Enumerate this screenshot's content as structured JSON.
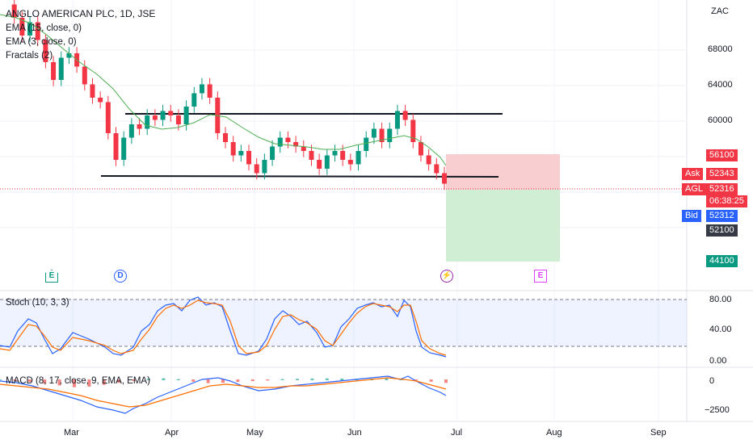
{
  "header": {
    "symbol_title": "ANGLO AMERICAN PLC, 1D, JSE",
    "indicators": [
      "EMA (15, close, 0)",
      "EMA (3, close, 0)",
      "Fractals (2)"
    ]
  },
  "price_axis": {
    "currency": "ZAC",
    "ticks": [
      68000,
      64000,
      60000
    ],
    "tick_labels": [
      "68000",
      "64000",
      "60000"
    ]
  },
  "price_tags": {
    "stop": {
      "value": "56100",
      "color": "#f23645"
    },
    "ask": {
      "label": "Ask",
      "value": "52343",
      "color": "#f23645"
    },
    "last": {
      "label": "AGL",
      "value": "52316",
      "countdown": "06:38:25",
      "color": "#f23645"
    },
    "bid": {
      "label": "Bid",
      "value": "52312",
      "color": "#2962ff"
    },
    "entry": {
      "value": "52100",
      "color": "#363a45"
    },
    "target": {
      "value": "44100",
      "color": "#089981"
    }
  },
  "events": [
    {
      "type": "E",
      "icon": "earnings-icon",
      "color": "#089981",
      "month_offset": "Mar-early"
    },
    {
      "type": "D",
      "icon": "dividend-icon",
      "color": "#2962ff"
    },
    {
      "type": "⚡",
      "icon": "split-icon",
      "color": "#9c27b0"
    },
    {
      "type": "E",
      "icon": "earnings-icon",
      "color": "#e040fb"
    }
  ],
  "stoch": {
    "label": "Stoch (10, 3, 3)",
    "tick_labels": [
      "80.00",
      "40.00",
      "0.00"
    ],
    "levels": [
      80,
      20
    ]
  },
  "macd": {
    "label": "MACD (8, 17, close, 9, EMA, EMA)",
    "tick_labels": [
      "0",
      "−2500"
    ]
  },
  "time_axis": {
    "labels": [
      "Mar",
      "Apr",
      "May",
      "Jun",
      "Jul",
      "Aug",
      "Sep"
    ]
  },
  "chart_data": {
    "type": "candlestick",
    "title": "ANGLO AMERICAN PLC, 1D, JSE",
    "y_unit": "ZAC",
    "ylim": [
      43000,
      73000
    ],
    "support_level": 53100,
    "resistance_level": 60800,
    "last_price": 52316,
    "position": {
      "entry": 52100,
      "stop": 56100,
      "target": 44100
    },
    "close_series_approx": [
      72500,
      71000,
      69000,
      70500,
      68500,
      66000,
      64000,
      66500,
      67000,
      65500,
      63500,
      62000,
      61500,
      58000,
      55000,
      57500,
      59000,
      58500,
      60000,
      59500,
      60500,
      60000,
      59000,
      61000,
      62500,
      63500,
      62000,
      58000,
      57000,
      55500,
      56000,
      54500,
      53500,
      55000,
      56500,
      57500,
      57000,
      56500,
      56000,
      55000,
      54000,
      55500,
      56000,
      55000,
      54500,
      56000,
      57500,
      58500,
      57000,
      58500,
      60500,
      59500,
      57000,
      55500,
      54500,
      53500,
      52316
    ],
    "stoch_k_approx": [
      30,
      25,
      55,
      75,
      70,
      45,
      20,
      30,
      55,
      80,
      78,
      62,
      35,
      15,
      20,
      70,
      82,
      72,
      60,
      75,
      80,
      70,
      55,
      35,
      10,
      15,
      25,
      60,
      80,
      70,
      55,
      25,
      20,
      40,
      65,
      78,
      80,
      70,
      40,
      10,
      5
    ],
    "macd_approx": [
      0,
      -200,
      -600,
      -1200,
      -1800,
      -2400,
      -2200,
      -1600,
      -900,
      -300,
      200,
      400,
      100,
      -500,
      -1000,
      -900,
      -600,
      -300,
      -100,
      100,
      200,
      300,
      350,
      300,
      200,
      250,
      400,
      300,
      -100,
      -500,
      -900
    ]
  }
}
